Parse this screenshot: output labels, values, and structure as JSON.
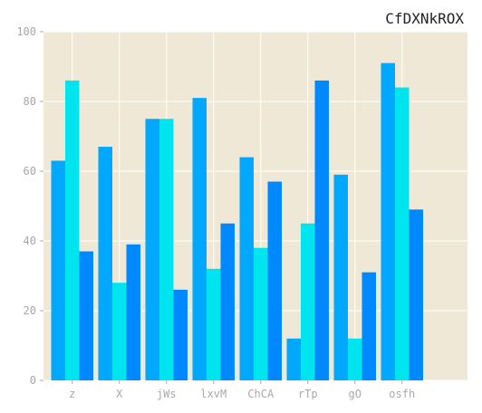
{
  "chart_data": {
    "type": "bar",
    "title": "CfDXNkROX",
    "xlabel": "",
    "ylabel": "",
    "categories": [
      "z",
      "X",
      "jWs",
      "lxvM",
      "ChCA",
      "rTp",
      "gO",
      "osfh"
    ],
    "series": [
      {
        "values": [
          63,
          67,
          75,
          81,
          64,
          12,
          59,
          91
        ]
      },
      {
        "values": [
          86,
          28,
          75,
          32,
          38,
          45,
          12,
          84
        ]
      },
      {
        "values": [
          37,
          39,
          26,
          45,
          57,
          86,
          31,
          49
        ]
      }
    ],
    "ylim": [
      0,
      100
    ],
    "yticks": [
      "0",
      "20",
      "40",
      "60",
      "80",
      "100"
    ],
    "grid": true,
    "colors": {
      "background": "#efe8d6",
      "grid": "#ffffff",
      "series": [
        "#00a8ff",
        "#00e4f0",
        "#0088ff"
      ]
    }
  }
}
